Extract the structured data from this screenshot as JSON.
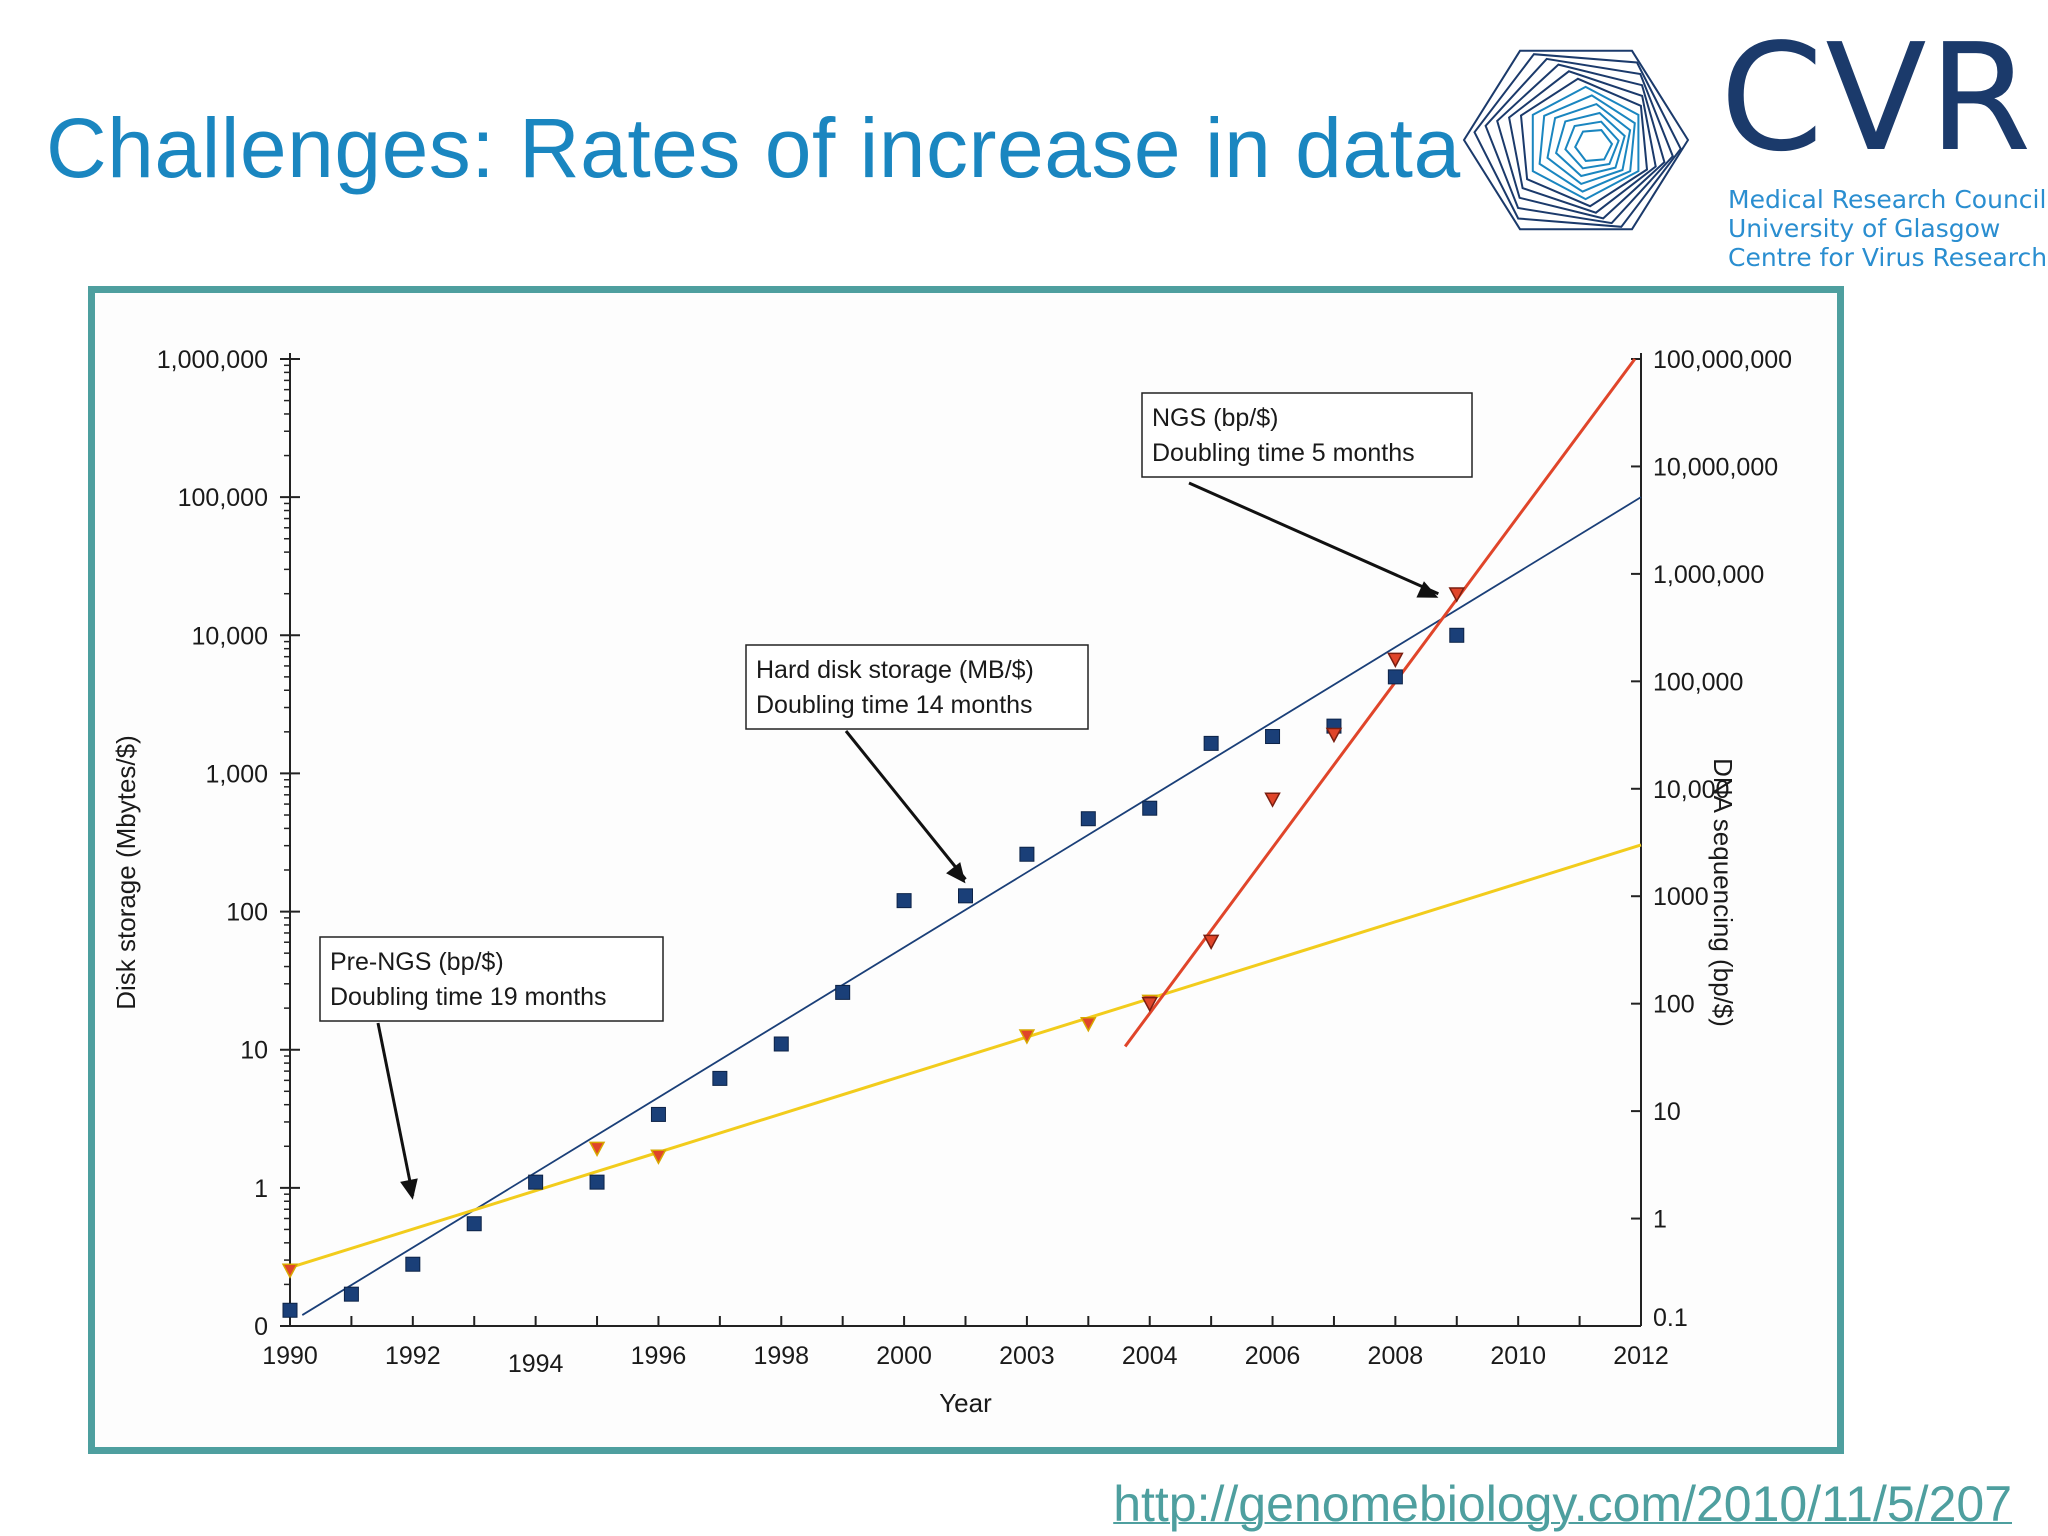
{
  "slide": {
    "title": "Challenges: Rates of increase in data",
    "source_url": "http://genomebiology.com/2010/11/5/207"
  },
  "logo": {
    "name": "CVR",
    "lines": [
      "Medical Research Council",
      "University of Glasgow",
      "Centre for Virus Research"
    ]
  },
  "colors": {
    "title": "#1a86c0",
    "frame": "#4e9f9f",
    "disk": "#1a3f78",
    "pre_ngs": "#f2cc1c",
    "ngs": "#e0452a"
  },
  "chart_data": {
    "type": "scatter",
    "xlabel": "Year",
    "ylabel_left": "Disk storage (Mbytes/$)",
    "ylabel_right": "DNA sequencing (bp/$)",
    "x_range": [
      1990,
      2012
    ],
    "x_ticks": [
      "1990",
      "1992",
      "1994",
      "1996",
      "1998",
      "2000",
      "2003",
      "2004",
      "2006",
      "2008",
      "2010",
      "2012"
    ],
    "y_left_log10_range": [
      -1,
      6
    ],
    "y_left_ticks": [
      "0",
      "1",
      "10",
      "100",
      "1,000",
      "10,000",
      "100,000",
      "1,000,000"
    ],
    "y_right_log10_range": [
      -1,
      8
    ],
    "y_right_ticks": [
      "0.1",
      "1",
      "10",
      "100",
      "1000",
      "10,000",
      "100,000",
      "1,000,000",
      "10,000,000",
      "100,000,000"
    ],
    "series": [
      {
        "name": "Hard disk storage (MB/$)",
        "axis": "left",
        "marker": "square",
        "color": "#1a3f78",
        "points": [
          [
            1990,
            0.13
          ],
          [
            1991,
            0.17
          ],
          [
            1992,
            0.28
          ],
          [
            1993,
            0.55
          ],
          [
            1994,
            1.1
          ],
          [
            1995,
            1.1
          ],
          [
            1996,
            3.4
          ],
          [
            1997,
            6.2
          ],
          [
            1998,
            11
          ],
          [
            1999,
            26
          ],
          [
            2000,
            120
          ],
          [
            2001,
            130
          ],
          [
            2002,
            260
          ],
          [
            2003,
            470
          ],
          [
            2004,
            560
          ],
          [
            2005,
            1650
          ],
          [
            2006,
            1850
          ],
          [
            2007,
            2200
          ],
          [
            2008,
            5000
          ],
          [
            2009,
            10000
          ]
        ]
      },
      {
        "name": "Pre-NGS (bp/$)",
        "axis": "right",
        "marker": "triangle-down",
        "color": "#f2cc1c",
        "points": [
          [
            1990,
            0.33
          ],
          [
            1995,
            4.5
          ],
          [
            1996,
            3.8
          ],
          [
            2002,
            50
          ],
          [
            2003,
            65
          ],
          [
            2004,
            105
          ]
        ]
      },
      {
        "name": "NGS (bp/$)",
        "axis": "right",
        "marker": "triangle-down",
        "color": "#e0452a",
        "points": [
          [
            2004,
            100
          ],
          [
            2005,
            380
          ],
          [
            2006,
            8000
          ],
          [
            2007,
            32000
          ],
          [
            2008,
            160000
          ],
          [
            2009,
            650000
          ]
        ]
      }
    ],
    "trendlines": [
      {
        "name": "Hard disk storage (MB/$)",
        "axis": "left",
        "color": "#1a3f78",
        "from": [
          1990.2,
          0.12
        ],
        "to": [
          2012,
          100000
        ]
      },
      {
        "name": "Pre-NGS (bp/$)",
        "axis": "right",
        "color": "#f2cc1c",
        "from": [
          1990,
          0.35
        ],
        "to": [
          2012,
          3000
        ]
      },
      {
        "name": "NGS (bp/$)",
        "axis": "right",
        "color": "#e0452a",
        "from": [
          2003.6,
          40
        ],
        "to": [
          2011.9,
          100000000
        ]
      }
    ],
    "annotations": [
      {
        "name": "annotation-ngs",
        "lines": [
          "NGS (bp/$)",
          "Doubling time 5 months"
        ],
        "target": [
          2008.7,
          600000
        ],
        "target_axis": "right"
      },
      {
        "name": "annotation-disk",
        "lines": [
          "Hard disk storage (MB/$)",
          "Doubling time 14 months"
        ],
        "target": [
          2001,
          160
        ],
        "target_axis": "left"
      },
      {
        "name": "annotation-pre-ngs",
        "lines": [
          "Pre-NGS (bp/$)",
          "Doubling time 19 months"
        ],
        "target": [
          1992,
          0.82
        ],
        "target_axis": "left"
      }
    ]
  }
}
